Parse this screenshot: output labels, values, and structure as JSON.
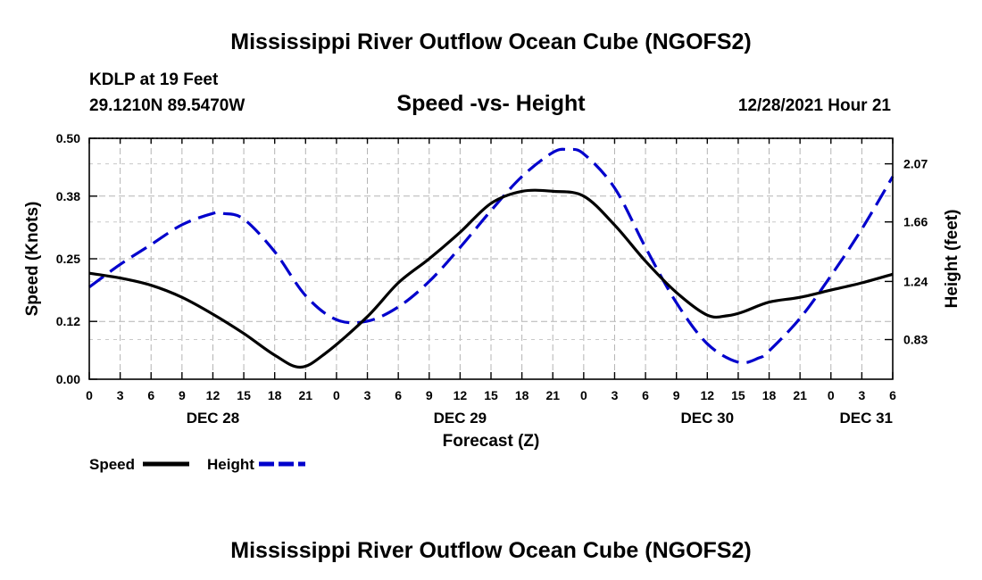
{
  "chart_data": {
    "type": "line",
    "title": "Mississippi River Outflow Ocean Cube (NGOFS2)",
    "footer_title": "Mississippi River Outflow Ocean Cube (NGOFS2)",
    "subtitle": "Speed -vs- Height",
    "station": "KDLP at 19 Feet",
    "location": "29.1210N  89.5470W",
    "timestamp": "12/28/2021 Hour 21",
    "xlabel": "Forecast (Z)",
    "ylabel_left": "Speed (Knots)",
    "ylabel_right": "Height (feet)",
    "xlim": [
      0,
      78
    ],
    "ylim_left": [
      0,
      0.5
    ],
    "ylim_right": [
      0.55,
      2.25
    ],
    "x_ticks": [
      0,
      3,
      6,
      9,
      12,
      15,
      18,
      21,
      24,
      27,
      30,
      33,
      36,
      39,
      42,
      45,
      48,
      51,
      54,
      57,
      60,
      63,
      66,
      69,
      72,
      75,
      78
    ],
    "x_tick_labels": [
      "0",
      "3",
      "6",
      "9",
      "12",
      "15",
      "18",
      "21",
      "0",
      "3",
      "6",
      "9",
      "12",
      "15",
      "18",
      "21",
      "0",
      "3",
      "6",
      "9",
      "12",
      "15",
      "18",
      "21",
      "0",
      "3",
      "6"
    ],
    "date_labels": [
      {
        "x": 12,
        "label": "DEC 28"
      },
      {
        "x": 36,
        "label": "DEC 29"
      },
      {
        "x": 60,
        "label": "DEC 30"
      },
      {
        "x": 75,
        "label": "DEC 31"
      }
    ],
    "y_ticks_left": [
      0.0,
      0.12,
      0.25,
      0.38,
      0.5
    ],
    "y_tick_labels_left": [
      "0.00",
      "0.12",
      "0.25",
      "0.38",
      "0.50"
    ],
    "y_ticks_right": [
      0.83,
      1.24,
      1.66,
      2.07
    ],
    "y_tick_labels_right": [
      "0.83",
      "1.24",
      "1.66",
      "2.07"
    ],
    "grid": true,
    "legend_position": "bottom-left",
    "series": [
      {
        "name": "Speed",
        "axis": "left",
        "color": "#000000",
        "style": "solid",
        "x": [
          0,
          3,
          6,
          9,
          12,
          15,
          18,
          20.5,
          23,
          27,
          30,
          33,
          36,
          39,
          42,
          45,
          48,
          51,
          54,
          57,
          60,
          62,
          63.5,
          66,
          69,
          72,
          75,
          78
        ],
        "values": [
          0.22,
          0.21,
          0.195,
          0.17,
          0.135,
          0.095,
          0.05,
          0.025,
          0.055,
          0.13,
          0.2,
          0.25,
          0.305,
          0.365,
          0.39,
          0.39,
          0.38,
          0.32,
          0.245,
          0.18,
          0.133,
          0.132,
          0.14,
          0.16,
          0.17,
          0.185,
          0.2,
          0.218
        ]
      },
      {
        "name": "Height",
        "axis": "right",
        "color": "#0000cc",
        "style": "dashed",
        "x": [
          0,
          3,
          6,
          9,
          12,
          13,
          15,
          18,
          21,
          24,
          27,
          30,
          33,
          36,
          39,
          42,
          45,
          46.5,
          48,
          51,
          54,
          57,
          60,
          63,
          65,
          66,
          69,
          72,
          75,
          78
        ],
        "values": [
          1.2,
          1.36,
          1.5,
          1.64,
          1.72,
          1.72,
          1.68,
          1.45,
          1.14,
          0.97,
          0.96,
          1.06,
          1.24,
          1.48,
          1.74,
          1.98,
          2.15,
          2.17,
          2.14,
          1.9,
          1.48,
          1.09,
          0.8,
          0.67,
          0.7,
          0.75,
          0.98,
          1.28,
          1.61,
          1.98
        ]
      }
    ]
  }
}
